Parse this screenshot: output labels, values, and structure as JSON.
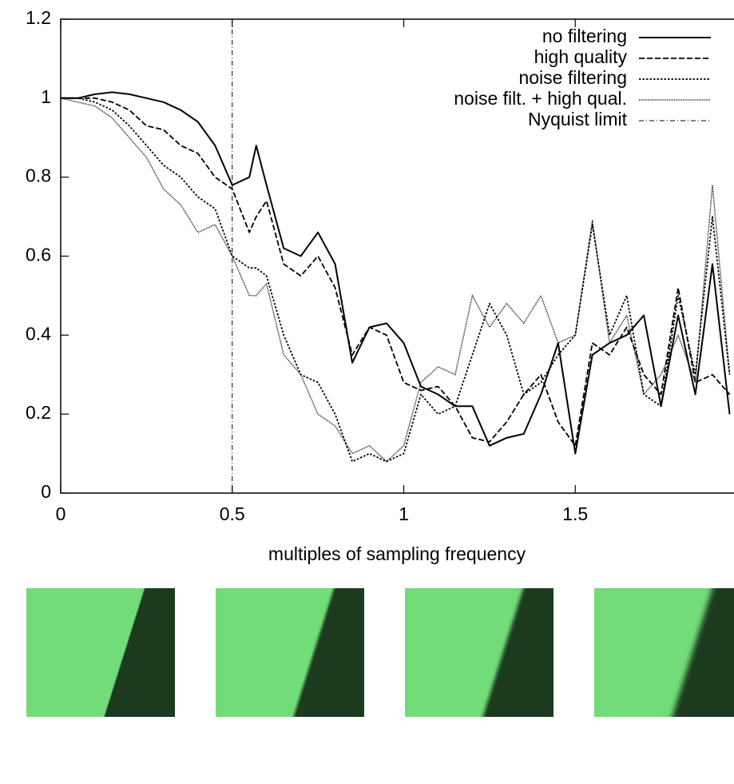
{
  "chart_data": {
    "type": "line",
    "xlabel": "multiples of sampling frequency",
    "x": [
      0,
      0.05,
      0.1,
      0.15,
      0.2,
      0.25,
      0.3,
      0.35,
      0.4,
      0.45,
      0.5,
      0.55,
      0.57,
      0.6,
      0.65,
      0.7,
      0.75,
      0.8,
      0.85,
      0.9,
      0.95,
      1.0,
      1.05,
      1.1,
      1.15,
      1.2,
      1.25,
      1.3,
      1.35,
      1.4,
      1.45,
      1.5,
      1.55,
      1.6,
      1.65,
      1.7,
      1.75,
      1.8,
      1.85,
      1.9,
      1.95
    ],
    "series": [
      {
        "name": "no filtering",
        "color": "#000000",
        "line_style": "solid",
        "values": [
          1.0,
          1.0,
          1.01,
          1.015,
          1.01,
          1.0,
          0.99,
          0.97,
          0.94,
          0.88,
          0.78,
          0.8,
          0.88,
          0.78,
          0.62,
          0.6,
          0.66,
          0.58,
          0.33,
          0.42,
          0.43,
          0.38,
          0.27,
          0.25,
          0.22,
          0.22,
          0.12,
          0.14,
          0.15,
          0.25,
          0.38,
          0.1,
          0.35,
          0.38,
          0.4,
          0.45,
          0.22,
          0.45,
          0.25,
          0.58,
          0.2
        ]
      },
      {
        "name": "high quality",
        "color": "#000000",
        "line_style": "dashed",
        "values": [
          1.0,
          1.0,
          1.0,
          0.99,
          0.97,
          0.93,
          0.92,
          0.88,
          0.86,
          0.8,
          0.77,
          0.66,
          0.7,
          0.74,
          0.58,
          0.55,
          0.6,
          0.52,
          0.35,
          0.42,
          0.4,
          0.28,
          0.26,
          0.27,
          0.22,
          0.14,
          0.13,
          0.18,
          0.25,
          0.3,
          0.18,
          0.12,
          0.38,
          0.35,
          0.42,
          0.3,
          0.25,
          0.52,
          0.28,
          0.3,
          0.25
        ]
      },
      {
        "name": "noise filtering",
        "color": "#000000",
        "line_style": "dotted",
        "values": [
          1.0,
          1.0,
          0.99,
          0.97,
          0.93,
          0.88,
          0.83,
          0.8,
          0.75,
          0.72,
          0.6,
          0.57,
          0.57,
          0.55,
          0.4,
          0.3,
          0.28,
          0.2,
          0.08,
          0.1,
          0.08,
          0.1,
          0.25,
          0.2,
          0.22,
          0.35,
          0.48,
          0.4,
          0.25,
          0.28,
          0.35,
          0.4,
          0.68,
          0.4,
          0.5,
          0.25,
          0.22,
          0.5,
          0.3,
          0.7,
          0.3
        ]
      },
      {
        "name": "noise filt. + high qual.",
        "color": "#000000",
        "line_style": "fine-dotted",
        "values": [
          1.0,
          0.99,
          0.98,
          0.95,
          0.9,
          0.85,
          0.77,
          0.73,
          0.66,
          0.68,
          0.6,
          0.5,
          0.5,
          0.53,
          0.35,
          0.3,
          0.2,
          0.17,
          0.1,
          0.12,
          0.08,
          0.12,
          0.28,
          0.32,
          0.3,
          0.5,
          0.42,
          0.48,
          0.43,
          0.5,
          0.38,
          0.4,
          0.69,
          0.38,
          0.45,
          0.25,
          0.3,
          0.4,
          0.28,
          0.78,
          0.3
        ]
      }
    ],
    "vline": {
      "name": "Nyquist limit",
      "x": 0.5,
      "line_style": "dash-dot"
    },
    "xlim": [
      0,
      2
    ],
    "ylim": [
      0,
      1.2
    ],
    "xticks": [
      0,
      0.5,
      1,
      1.5
    ],
    "yticks": [
      0,
      0.2,
      0.4,
      0.6,
      0.8,
      1,
      1.2
    ],
    "legend": "top-right"
  }
}
